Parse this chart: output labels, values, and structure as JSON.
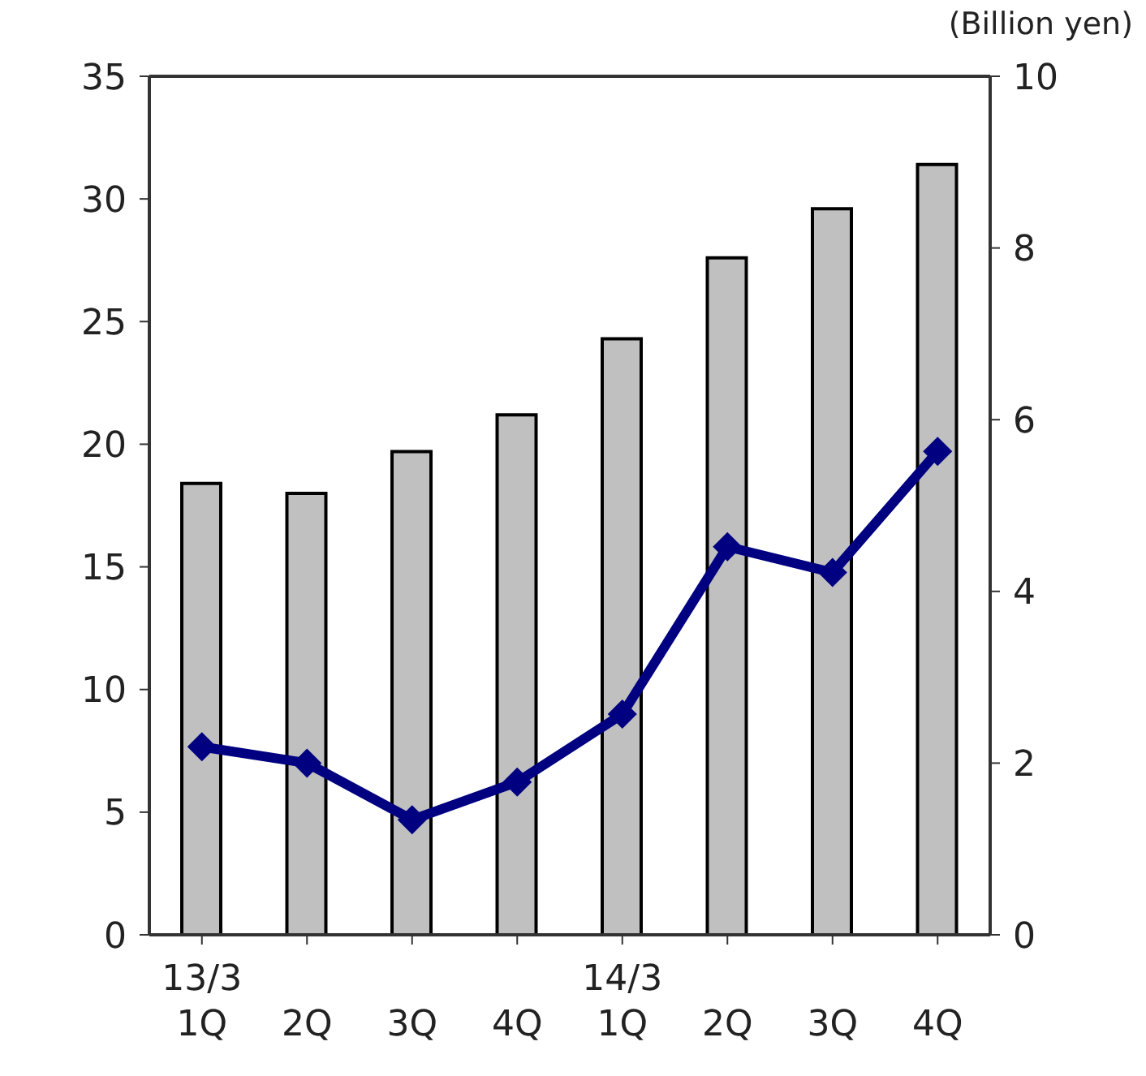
{
  "chart_data": {
    "type": "bar",
    "y2label": "(Billion yen)",
    "categories": [
      "13/3\n1Q",
      "2Q",
      "3Q",
      "4Q",
      "14/3\n1Q",
      "2Q",
      "3Q",
      "4Q"
    ],
    "series": [
      {
        "color": "#c0c0c0",
        "values": [
          18.4,
          18.0,
          19.7,
          21.2,
          24.3,
          27.6,
          29.6,
          31.4
        ]
      },
      {
        "type": "line",
        "axis": "y2",
        "color": "#000080",
        "marker": "diamond",
        "values": [
          2.19,
          2.0,
          1.34,
          1.78,
          2.57,
          4.52,
          4.22,
          5.63
        ]
      }
    ],
    "ylim": [
      0,
      35
    ],
    "yticks": [
      0,
      5,
      10,
      15,
      20,
      25,
      30,
      35
    ],
    "y2lim": [
      0,
      10
    ],
    "y2ticks": [
      0,
      2,
      4,
      6,
      8,
      10
    ],
    "grid": false,
    "legend": false
  }
}
